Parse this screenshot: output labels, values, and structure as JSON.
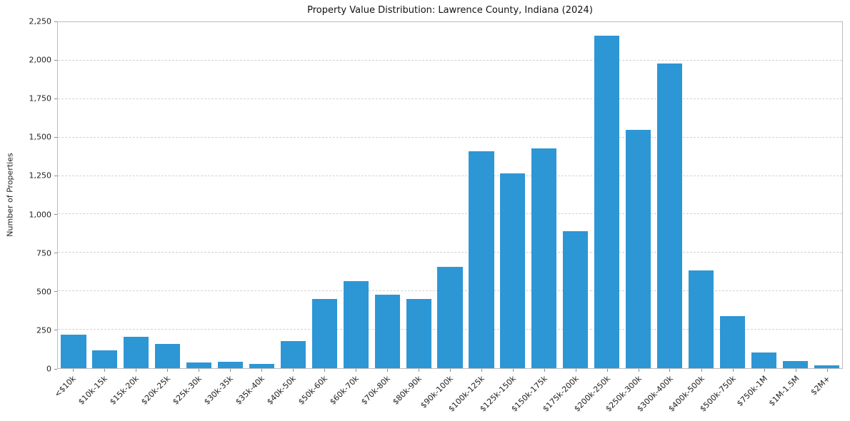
{
  "chart_data": {
    "type": "bar",
    "title": "Property Value Distribution: Lawrence County, Indiana (2024)",
    "xlabel": "",
    "ylabel": "Number of Properties",
    "categories": [
      "<$10k",
      "$10k-15k",
      "$15k-20k",
      "$20k-25k",
      "$25k-30k",
      "$30k-35k",
      "$35k-40k",
      "$40k-50k",
      "$50k-60k",
      "$60k-70k",
      "$70k-80k",
      "$80k-90k",
      "$90k-100k",
      "$100k-125k",
      "$125k-150k",
      "$150k-175k",
      "$175k-200k",
      "$200k-250k",
      "$250k-300k",
      "$300k-400k",
      "$400k-500k",
      "$500k-750k",
      "$750k-1M",
      "$1M-1.5M",
      "$2M+"
    ],
    "values": [
      220,
      115,
      205,
      160,
      35,
      40,
      30,
      175,
      450,
      565,
      480,
      450,
      660,
      1410,
      1265,
      1430,
      890,
      2160,
      1550,
      1980,
      635,
      340,
      100,
      45,
      20
    ],
    "ylim": [
      0,
      2250
    ],
    "ytick_values": [
      0,
      250,
      500,
      750,
      1000,
      1250,
      1500,
      1750,
      2000,
      2250
    ],
    "ytick_labels": [
      "0",
      "250",
      "500",
      "750",
      "1,000",
      "1,250",
      "1,500",
      "1,750",
      "2,000",
      "2,250"
    ],
    "bar_color": "#2d96d5",
    "grid": "horizontal-dashed",
    "legend": "none",
    "x_tick_rotation_deg": 45
  }
}
